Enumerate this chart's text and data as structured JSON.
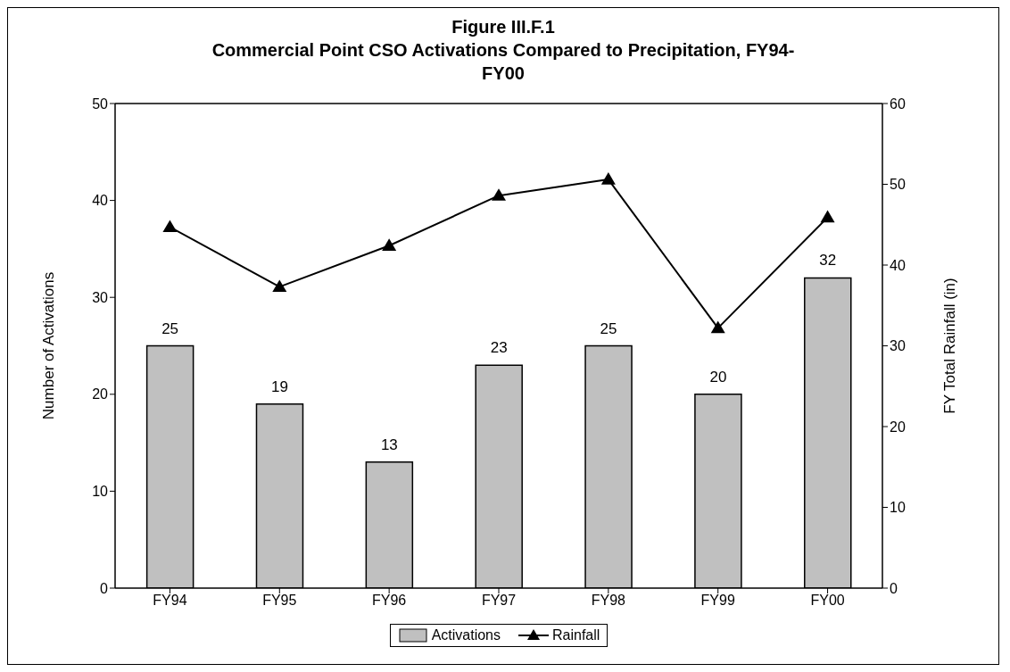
{
  "chart_data": {
    "type": "bar",
    "title": "Figure III.F.1",
    "subtitle": "Commercial Point CSO Activations Compared to Precipitation, FY94-FY00",
    "ylabel": "Number of Activations",
    "y2label": "FY Total Rainfall (in)",
    "categories": [
      "FY94",
      "FY95",
      "FY96",
      "FY97",
      "FY98",
      "FY99",
      "FY00"
    ],
    "series": [
      {
        "name": "Activations",
        "color": "#c0c0c0",
        "values": [
          25,
          19,
          13,
          23,
          25,
          20,
          32
        ],
        "value_labels": [
          "25",
          "19",
          "13",
          "23",
          "25",
          "20",
          "32"
        ]
      },
      {
        "name": "Rainfall",
        "type": "line",
        "axis": "y2",
        "color": "#000000",
        "marker": "triangle",
        "values": [
          44.7,
          37.3,
          42.4,
          48.6,
          50.6,
          32.2,
          45.9
        ]
      }
    ],
    "ylim": [
      0,
      50
    ],
    "yticks": [
      0,
      10,
      20,
      30,
      40,
      50
    ],
    "y2lim": [
      0,
      60
    ],
    "y2ticks": [
      0,
      10,
      20,
      30,
      40,
      50,
      60
    ],
    "legend": "bottom"
  }
}
